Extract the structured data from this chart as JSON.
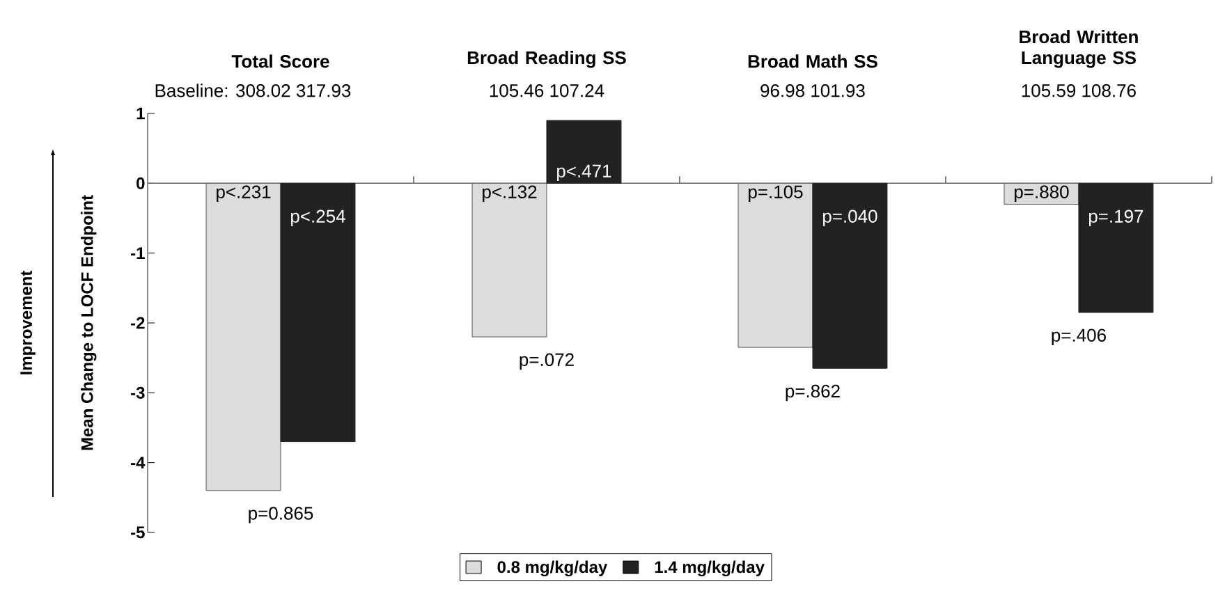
{
  "chart_data": {
    "type": "bar",
    "categories": [
      "Total Score",
      "Broad Reading SS",
      "Broad Math SS",
      "Broad Written Language SS"
    ],
    "ylabel": "Mean Change to LOCF Endpoint",
    "series": [
      {
        "name": "0.8 mg/kg/day",
        "color": "#dcdcdc",
        "values": [
          -4.4,
          -2.2,
          -2.35,
          -0.3
        ]
      },
      {
        "name": "1.4 mg/kg/day",
        "color": "#222222",
        "values": [
          -3.7,
          0.9,
          -2.65,
          -1.85
        ]
      }
    ],
    "annotations": [
      "Baseline: 308.02  317.93",
      "105.46  107.24",
      "96.98  101.93",
      "105.59  108.76",
      "Improvement",
      "p<.231",
      "p<.132",
      "p=.105",
      "p=.880",
      "p<.254",
      "p<.471",
      "p=.040",
      "p=.197",
      "p=0.865",
      "p=.072",
      "p=.862",
      "p=.406"
    ],
    "ylim": [
      -5,
      1
    ],
    "yticks": [
      -5,
      -4,
      -3,
      -2,
      -1,
      0,
      1
    ],
    "legend": "bottom"
  }
}
